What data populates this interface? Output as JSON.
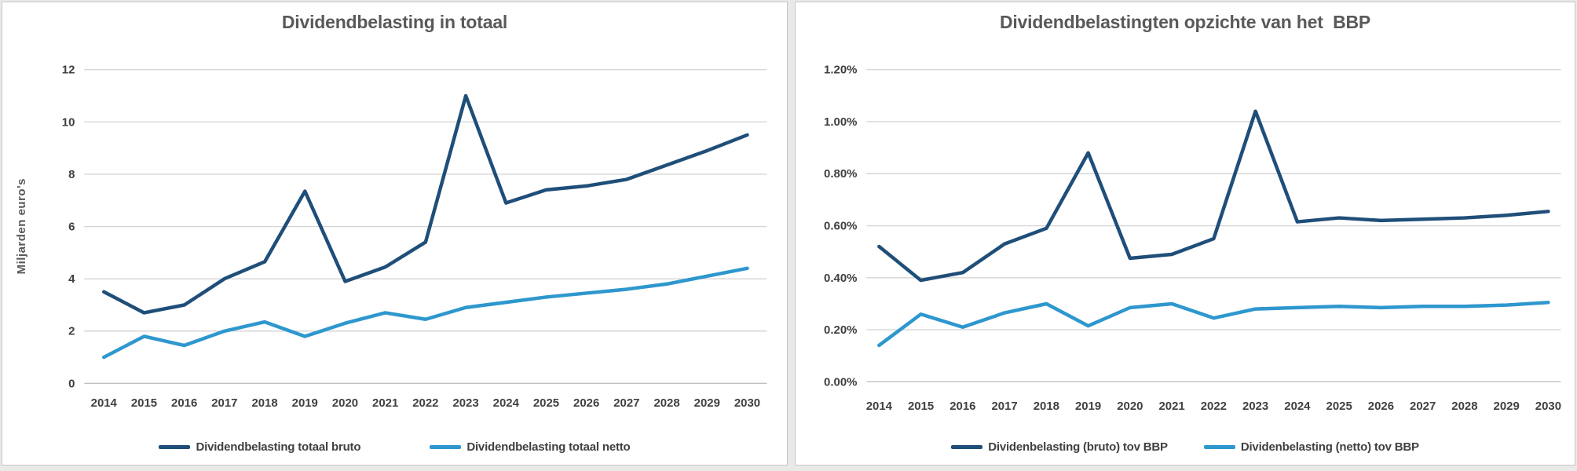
{
  "page": {
    "background": "#ffffff",
    "panel_border": "#c6c6c6"
  },
  "colors": {
    "bruto_line": "#1F4E79",
    "netto_line": "#2E97CE",
    "gridline": "#D6D6D6",
    "axis_line": "#BFBFBF",
    "title_text": "#595959",
    "tick_text": "#404040"
  },
  "chart_data": [
    {
      "type": "line",
      "title": "Dividendbelasting in totaal",
      "ylabel": "Miljarden euro's",
      "xlabel": "",
      "legend_position": "bottom",
      "grid": true,
      "ylim": [
        0,
        12
      ],
      "y_ticks": [
        "0",
        "2",
        "4",
        "6",
        "8",
        "10",
        "12"
      ],
      "categories": [
        "2014",
        "2015",
        "2016",
        "2017",
        "2018",
        "2019",
        "2020",
        "2021",
        "2022",
        "2023",
        "2024",
        "2025",
        "2026",
        "2027",
        "2028",
        "2029",
        "2030"
      ],
      "series": [
        {
          "name": "Dividendbelasting totaal bruto",
          "color": "#1F4E79",
          "values": [
            3.5,
            2.7,
            3.0,
            4.0,
            4.65,
            7.35,
            3.9,
            4.45,
            5.4,
            11.0,
            6.9,
            7.4,
            7.55,
            7.8,
            8.35,
            8.9,
            9.5
          ]
        },
        {
          "name": "Dividendbelasting totaal netto",
          "color": "#2E97CE",
          "values": [
            1.0,
            1.8,
            1.45,
            2.0,
            2.35,
            1.8,
            2.3,
            2.7,
            2.45,
            2.9,
            3.1,
            3.3,
            3.45,
            3.6,
            3.8,
            4.1,
            4.4
          ]
        }
      ]
    },
    {
      "type": "line",
      "title": "Dividendbelastingten opzichte van het  BBP",
      "ylabel": "",
      "xlabel": "",
      "legend_position": "bottom",
      "grid": true,
      "ylim": [
        0,
        1.2
      ],
      "y_ticks": [
        "0.00%",
        "0.20%",
        "0.40%",
        "0.60%",
        "0.80%",
        "1.00%",
        "1.20%"
      ],
      "categories": [
        "2014",
        "2015",
        "2016",
        "2017",
        "2018",
        "2019",
        "2020",
        "2021",
        "2022",
        "2023",
        "2024",
        "2025",
        "2026",
        "2027",
        "2028",
        "2029",
        "2030"
      ],
      "series": [
        {
          "name": "Dividenbelasting (bruto) tov BBP",
          "color": "#1F4E79",
          "values": [
            0.52,
            0.39,
            0.42,
            0.53,
            0.59,
            0.88,
            0.475,
            0.49,
            0.55,
            1.04,
            0.615,
            0.63,
            0.62,
            0.625,
            0.63,
            0.64,
            0.655
          ]
        },
        {
          "name": "Dividenbelasting (netto) tov BBP",
          "color": "#2E97CE",
          "values": [
            0.14,
            0.26,
            0.21,
            0.265,
            0.3,
            0.215,
            0.285,
            0.3,
            0.245,
            0.28,
            0.285,
            0.29,
            0.285,
            0.29,
            0.29,
            0.295,
            0.305
          ]
        }
      ]
    }
  ]
}
